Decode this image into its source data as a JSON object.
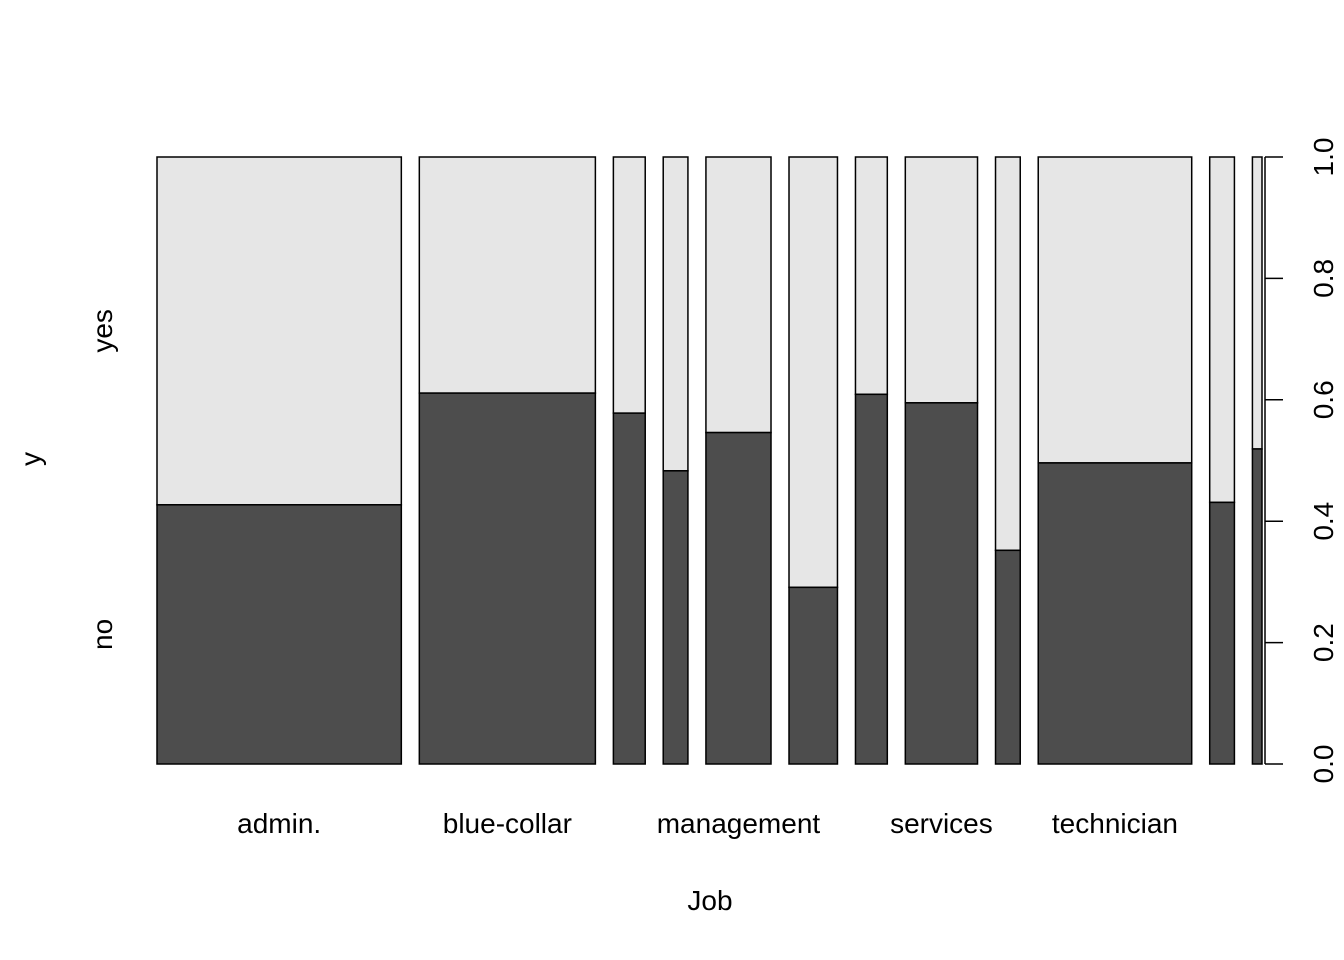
{
  "chart_data": {
    "type": "bar",
    "subtype": "spineplot",
    "title": "",
    "xlabel": "Job",
    "ylabel": "y",
    "ylim": [
      0,
      1
    ],
    "y_ticks": [
      "0.0",
      "0.2",
      "0.4",
      "0.6",
      "0.8",
      "1.0"
    ],
    "y_categories": [
      "no",
      "yes"
    ],
    "categories": [
      "admin.",
      "blue-collar",
      "",
      "",
      "management",
      "",
      "",
      "services",
      "",
      "technician",
      "",
      ""
    ],
    "x_tick_labels": [
      {
        "category": 0,
        "label": "admin."
      },
      {
        "category": 1,
        "label": "blue-collar"
      },
      {
        "category": 4,
        "label": "management"
      },
      {
        "category": 7,
        "label": "services"
      },
      {
        "category": 9,
        "label": "technician"
      }
    ],
    "widths": [
      0.2294,
      0.1653,
      0.0299,
      0.0232,
      0.0611,
      0.0455,
      0.0299,
      0.0678,
      0.0232,
      0.1441,
      0.0232,
      0.009
    ],
    "series": [
      {
        "name": "no",
        "values": [
          0.427,
          0.611,
          0.578,
          0.483,
          0.546,
          0.291,
          0.609,
          0.595,
          0.352,
          0.496,
          0.431,
          0.519
        ]
      },
      {
        "name": "yes",
        "values": [
          0.573,
          0.389,
          0.422,
          0.517,
          0.454,
          0.709,
          0.391,
          0.405,
          0.648,
          0.504,
          0.569,
          0.481
        ]
      }
    ],
    "colors": {
      "no": "#4d4d4d",
      "yes": "#e6e6e6",
      "border": "#000000"
    },
    "legend": "none",
    "grid": false
  }
}
